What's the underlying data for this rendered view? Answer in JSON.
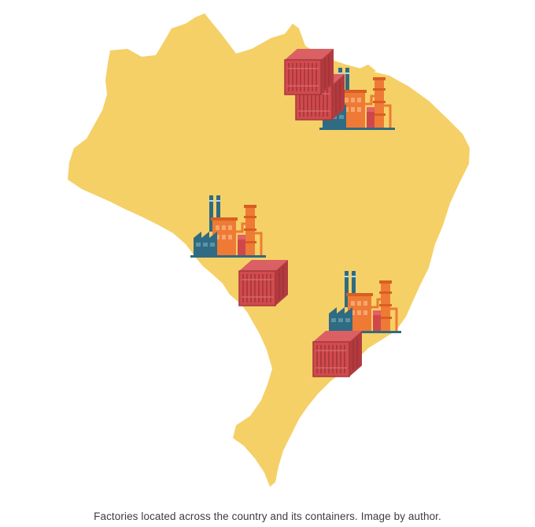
{
  "figure": {
    "caption": "Factories located across the country and its containers. Image by author.",
    "map_color": "#F5D066",
    "factory_orange": "#EE7A35",
    "factory_teal": "#2F6B82",
    "factory_red": "#D0474B",
    "container_red": "#C9474A"
  },
  "markers": [
    {
      "name": "north-east",
      "factory": "factory-icon",
      "containers": 2
    },
    {
      "name": "center-west",
      "factory": "factory-icon",
      "containers": 1
    },
    {
      "name": "south-east",
      "factory": "factory-icon",
      "containers": 1
    }
  ]
}
